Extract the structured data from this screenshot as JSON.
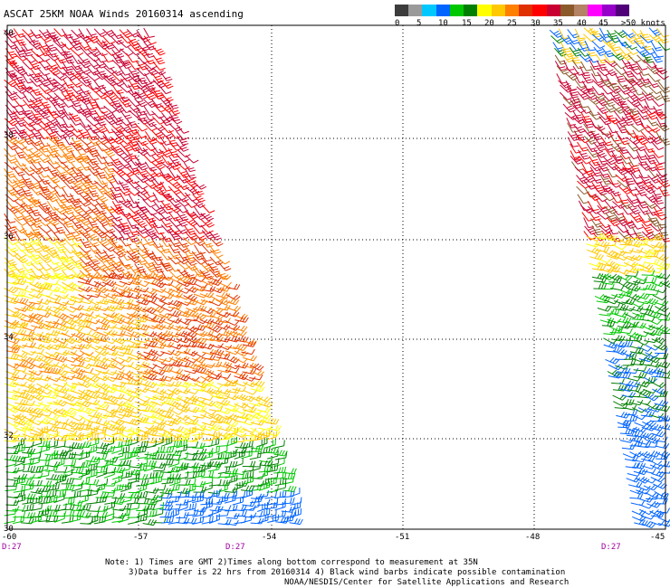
{
  "title": "ASCAT 25KM NOAA Winds 20160314 ascending",
  "color_scale": {
    "labels": [
      "0",
      "5",
      "10",
      "15",
      "20",
      "25",
      "30",
      "35",
      "40",
      "45",
      ">50 knots"
    ],
    "colors": [
      "#3c3c3c",
      "#9a9a9a",
      "#00c8ff",
      "#0064ff",
      "#00c800",
      "#008000",
      "#ffff00",
      "#ffc800",
      "#ff7f00",
      "#e03000",
      "#ff0000",
      "#c80032",
      "#8b5a2b",
      "#b48264",
      "#ff00ff",
      "#9600c8",
      "#500078"
    ]
  },
  "lat_labels": [
    "40",
    "38",
    "36",
    "34",
    "32",
    "30"
  ],
  "lon_labels": [
    "-60",
    "-57",
    "-54",
    "-51",
    "-48",
    "-45"
  ],
  "time_labels": [
    "D:27",
    "D:27",
    "D:27"
  ],
  "notes": [
    "Note: 1) Times are GMT 2)Times along bottom correspond to measurement at 35N",
    "3)Data buffer is 22 hrs from 20160314 4) Black wind barbs indicate possible contamination",
    "NOAA/NESDIS/Center for Satellite Applications and Research"
  ]
}
